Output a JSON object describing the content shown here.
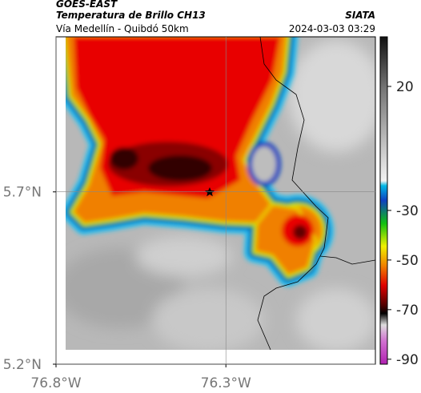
{
  "header": {
    "source": "GOES-EAST",
    "title": "Temperatura de Brillo CH13",
    "org": "SIATA",
    "subtitle": "Vía Medellín - Quibdó 50km",
    "timestamp": "2024-03-03 03:29"
  },
  "map": {
    "xlim": [
      -76.8,
      -75.86
    ],
    "ylim": [
      5.2,
      6.15
    ],
    "xticks": [
      {
        "value": -76.8,
        "label": "76.8°W"
      },
      {
        "value": -76.3,
        "label": "76.3°W"
      }
    ],
    "yticks": [
      {
        "value": 5.7,
        "label": "5.7°N"
      },
      {
        "value": 5.2,
        "label": "5.2°N"
      }
    ],
    "grid": true
  },
  "colorbar": {
    "lim": [
      -92,
      40
    ],
    "ticks": [
      20,
      -30,
      -50,
      -70,
      -90
    ]
  }
}
